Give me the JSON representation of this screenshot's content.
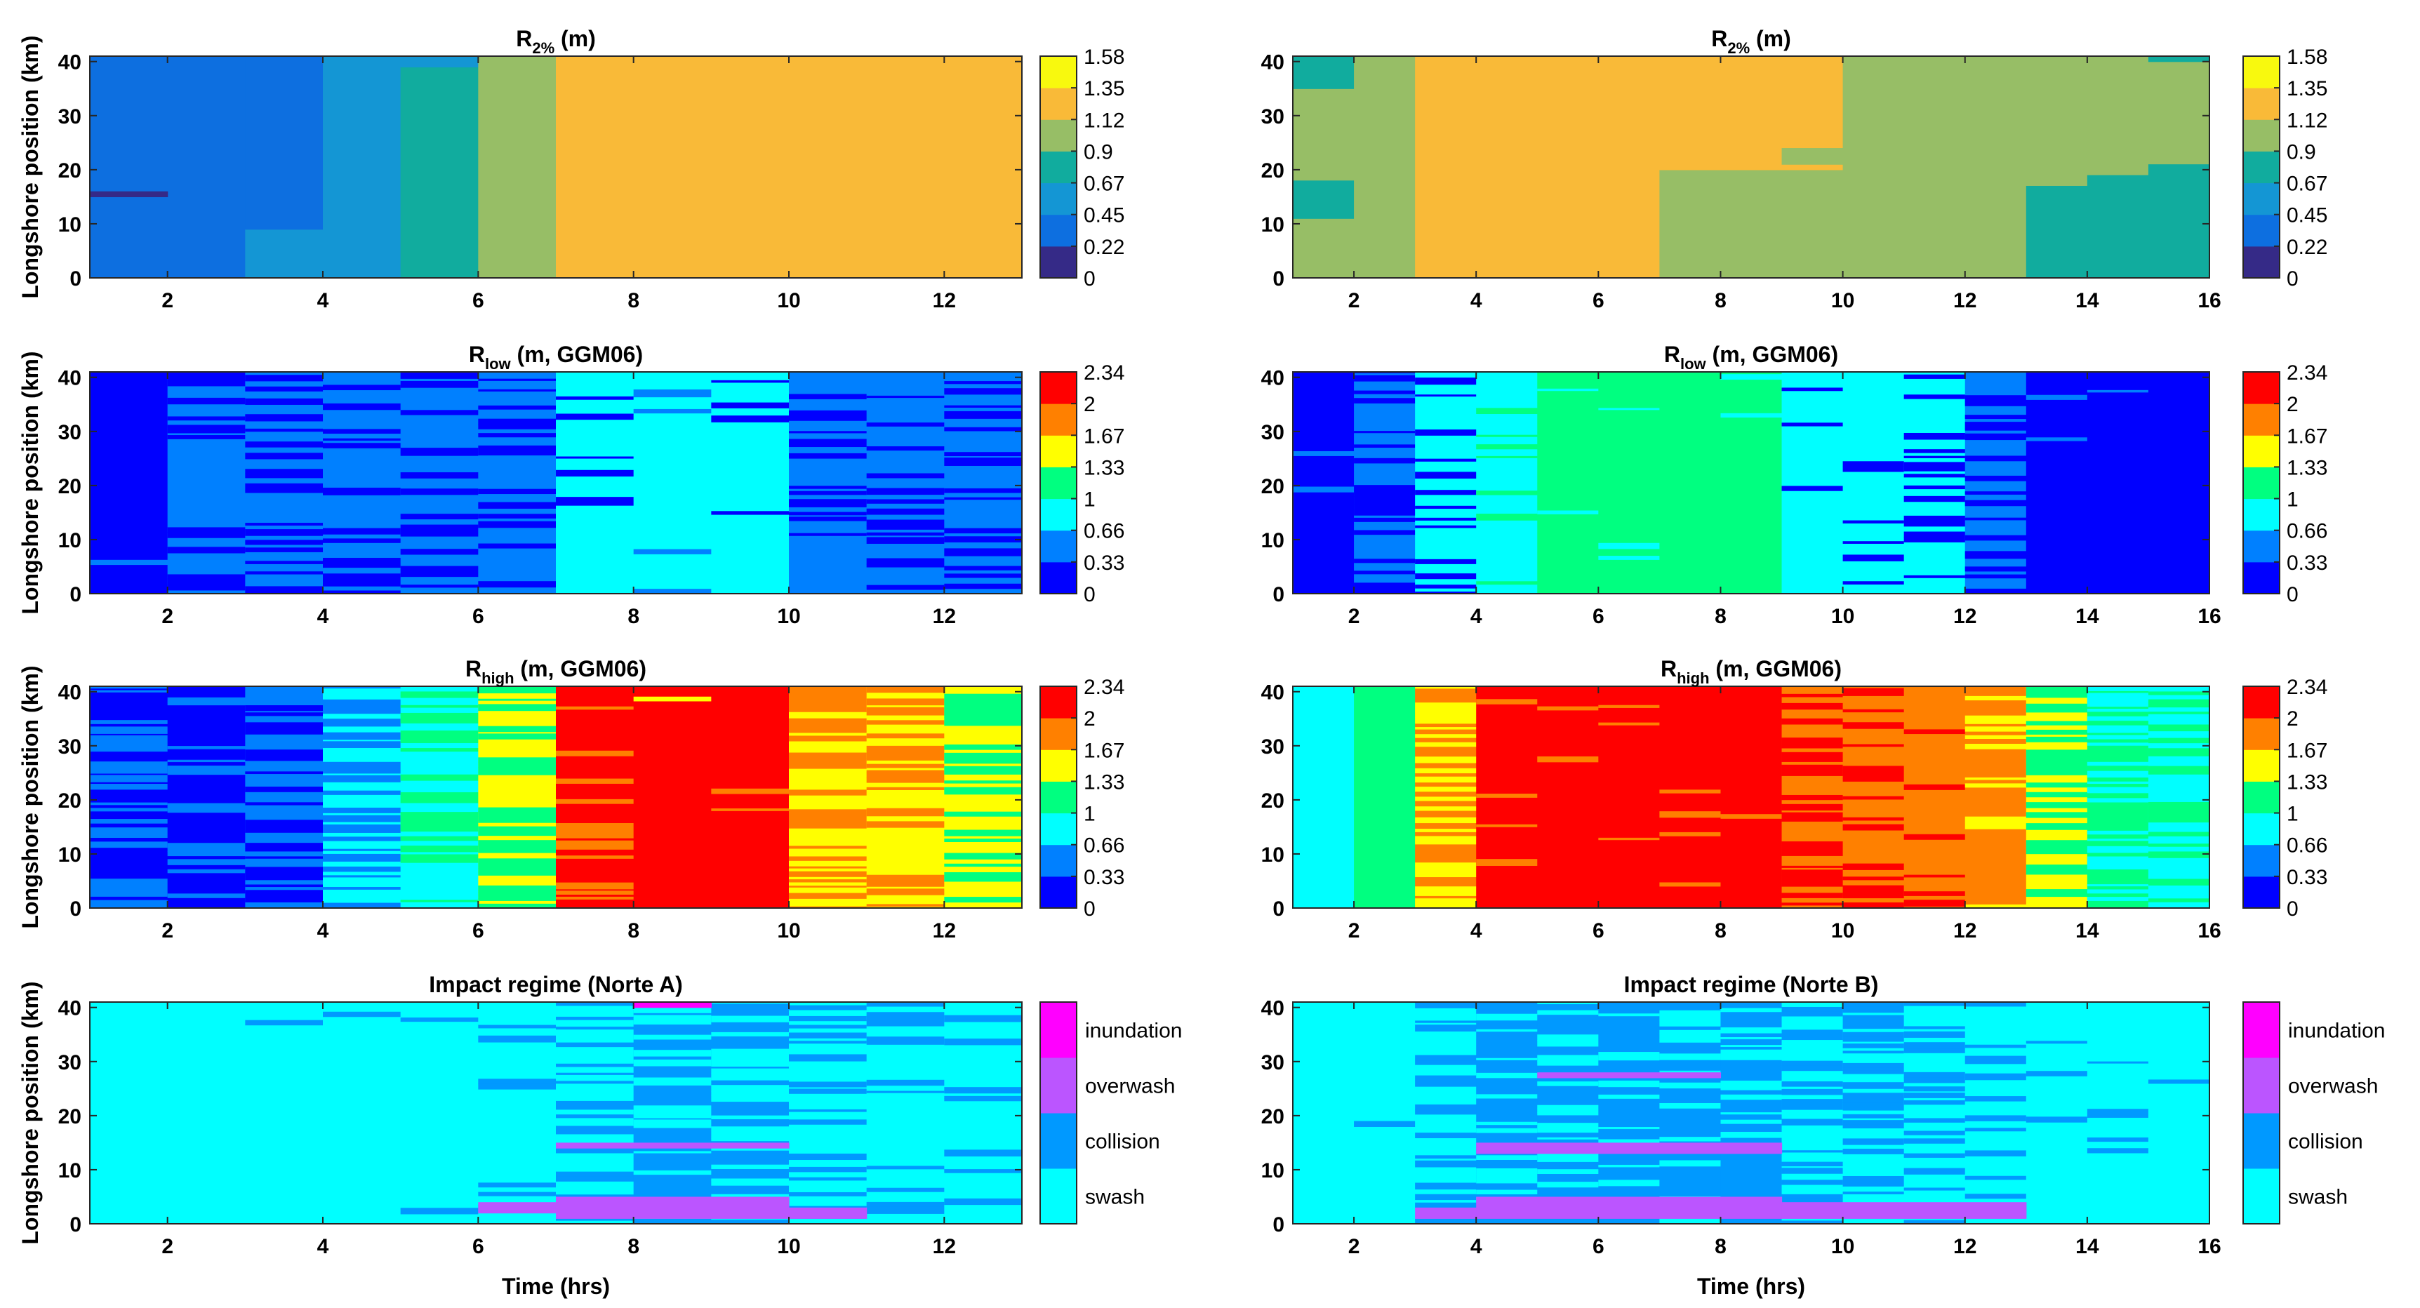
{
  "colors": {
    "parula": [
      "#352a87",
      "#0d6fe0",
      "#1496d4",
      "#11ac9e",
      "#97be66",
      "#f9ba38",
      "#f8f90e"
    ],
    "jet": [
      "#0000ff",
      "#0080ff",
      "#00ffff",
      "#00ff80",
      "#ffff00",
      "#ff8000",
      "#ff0000"
    ],
    "regime": [
      "#00ffff",
      "#0099ff",
      "#bb55ff",
      "#ff00ff"
    ]
  },
  "labels": {
    "ylabel": "Longshore position (km)",
    "xlabel": "Time (hrs)"
  },
  "chart_data": [
    {
      "type": "heatmap",
      "id": "r2_a",
      "colormap": "parula",
      "title_main": "R",
      "title_sub": "2%",
      "title_rest": " (m)",
      "x_ticks": [
        "2",
        "4",
        "6",
        "8",
        "10",
        "12"
      ],
      "y_ticks": [
        "0",
        "10",
        "20",
        "30",
        "40"
      ],
      "xlim": [
        1,
        13
      ],
      "ylim": [
        0,
        41
      ],
      "cbar_ticks": [
        "0",
        "0.22",
        "0.45",
        "0.67",
        "0.9",
        "1.12",
        "1.35",
        "1.58"
      ],
      "blocks": [
        {
          "t0": 1,
          "t1": 3,
          "y0": 0,
          "y1": 41,
          "c": 1
        },
        {
          "t0": 1,
          "t1": 2,
          "y0": 15,
          "y1": 16,
          "c": 0
        },
        {
          "t0": 3,
          "t1": 4,
          "y0": 0,
          "y1": 9,
          "c": 2
        },
        {
          "t0": 3,
          "t1": 4,
          "y0": 9,
          "y1": 41,
          "c": 1
        },
        {
          "t0": 4,
          "t1": 5,
          "y0": 0,
          "y1": 41,
          "c": 2
        },
        {
          "t0": 5,
          "t1": 6,
          "y0": 0,
          "y1": 39,
          "c": 3
        },
        {
          "t0": 5,
          "t1": 6,
          "y0": 39,
          "y1": 41,
          "c": 2
        },
        {
          "t0": 6,
          "t1": 7,
          "y0": 0,
          "y1": 41,
          "c": 4
        },
        {
          "t0": 7,
          "t1": 13,
          "y0": 0,
          "y1": 41,
          "c": 5
        }
      ]
    },
    {
      "type": "heatmap",
      "id": "r2_b",
      "colormap": "parula",
      "title_main": "R",
      "title_sub": "2%",
      "title_rest": " (m)",
      "x_ticks": [
        "2",
        "4",
        "6",
        "8",
        "10",
        "12",
        "14",
        "16"
      ],
      "y_ticks": [
        "0",
        "10",
        "20",
        "30",
        "40"
      ],
      "xlim": [
        1,
        16
      ],
      "ylim": [
        0,
        41
      ],
      "cbar_ticks": [
        "0",
        "0.22",
        "0.45",
        "0.67",
        "0.9",
        "1.12",
        "1.35",
        "1.58"
      ],
      "blocks": [
        {
          "t0": 1,
          "t1": 2,
          "y0": 0,
          "y1": 41,
          "c": 4
        },
        {
          "t0": 1,
          "t1": 2,
          "y0": 35,
          "y1": 41,
          "c": 3
        },
        {
          "t0": 1,
          "t1": 2,
          "y0": 11,
          "y1": 18,
          "c": 3
        },
        {
          "t0": 2,
          "t1": 3,
          "y0": 0,
          "y1": 41,
          "c": 4
        },
        {
          "t0": 3,
          "t1": 7,
          "y0": 0,
          "y1": 41,
          "c": 5
        },
        {
          "t0": 7,
          "t1": 10,
          "y0": 0,
          "y1": 20,
          "c": 4
        },
        {
          "t0": 7,
          "t1": 10,
          "y0": 20,
          "y1": 41,
          "c": 5
        },
        {
          "t0": 9,
          "t1": 10,
          "y0": 21,
          "y1": 24,
          "c": 4
        },
        {
          "t0": 10,
          "t1": 16,
          "y0": 0,
          "y1": 41,
          "c": 4
        },
        {
          "t0": 13,
          "t1": 14,
          "y0": 0,
          "y1": 17,
          "c": 3
        },
        {
          "t0": 14,
          "t1": 15,
          "y0": 0,
          "y1": 19,
          "c": 3
        },
        {
          "t0": 15,
          "t1": 16,
          "y0": 0,
          "y1": 21,
          "c": 3
        },
        {
          "t0": 15,
          "t1": 16,
          "y0": 40,
          "y1": 41,
          "c": 3
        }
      ]
    },
    {
      "type": "heatmap",
      "id": "rlow_a",
      "colormap": "jet",
      "title_main": "R",
      "title_sub": "low",
      "title_rest": " (m, GGM06)",
      "x_ticks": [
        "2",
        "4",
        "6",
        "8",
        "10",
        "12"
      ],
      "y_ticks": [
        "0",
        "10",
        "20",
        "30",
        "40"
      ],
      "xlim": [
        1,
        13
      ],
      "ylim": [
        0,
        41
      ],
      "cbar_ticks": [
        "0",
        "0.33",
        "0.66",
        "1",
        "1.33",
        "1.67",
        "2",
        "2.34"
      ],
      "columns": [
        {
          "base": 0,
          "alt": 1,
          "frac": 0.05
        },
        {
          "base": 1,
          "alt": 0,
          "frac": 0.3
        },
        {
          "base": 1,
          "alt": 0,
          "frac": 0.3
        },
        {
          "base": 1,
          "alt": 0,
          "frac": 0.3
        },
        {
          "base": 1,
          "alt": 0,
          "frac": 0.25
        },
        {
          "base": 1,
          "alt": 0,
          "frac": 0.3
        },
        {
          "base": 2,
          "alt": 0,
          "frac": 0.12
        },
        {
          "base": 2,
          "alt": 1,
          "frac": 0.1
        },
        {
          "base": 2,
          "alt": 0,
          "frac": 0.1
        },
        {
          "base": 1,
          "alt": 0,
          "frac": 0.3
        },
        {
          "base": 1,
          "alt": 0,
          "frac": 0.3
        },
        {
          "base": 1,
          "alt": 0,
          "frac": 0.35
        }
      ]
    },
    {
      "type": "heatmap",
      "id": "rlow_b",
      "colormap": "jet",
      "title_main": "R",
      "title_sub": "low",
      "title_rest": " (m, GGM06)",
      "x_ticks": [
        "2",
        "4",
        "6",
        "8",
        "10",
        "12",
        "14",
        "16"
      ],
      "y_ticks": [
        "0",
        "10",
        "20",
        "30",
        "40"
      ],
      "xlim": [
        1,
        16
      ],
      "ylim": [
        0,
        41
      ],
      "cbar_ticks": [
        "0",
        "0.33",
        "0.66",
        "1",
        "1.33",
        "1.67",
        "2",
        "2.34"
      ],
      "columns": [
        {
          "base": 0,
          "alt": 1,
          "frac": 0.04
        },
        {
          "base": 1,
          "alt": 0,
          "frac": 0.3
        },
        {
          "base": 2,
          "alt": 0,
          "frac": 0.25
        },
        {
          "base": 2,
          "alt": 3,
          "frac": 0.3
        },
        {
          "base": 3,
          "alt": 2,
          "frac": 0.03
        },
        {
          "base": 3,
          "alt": 2,
          "frac": 0.03
        },
        {
          "base": 3,
          "alt": 2,
          "frac": 0.02
        },
        {
          "base": 3,
          "alt": 2,
          "frac": 0.02
        },
        {
          "base": 2,
          "alt": 0,
          "frac": 0.08
        },
        {
          "base": 2,
          "alt": 0,
          "frac": 0.2
        },
        {
          "base": 2,
          "alt": 0,
          "frac": 0.3
        },
        {
          "base": 1,
          "alt": 0,
          "frac": 0.35
        },
        {
          "base": 0,
          "alt": 1,
          "frac": 0.05
        },
        {
          "base": 0,
          "alt": 1,
          "frac": 0.02
        },
        {
          "base": 0,
          "alt": 1,
          "frac": 0.0
        }
      ]
    },
    {
      "type": "heatmap",
      "id": "rhigh_a",
      "colormap": "jet",
      "title_main": "R",
      "title_sub": "high",
      "title_rest": " (m, GGM06)",
      "x_ticks": [
        "2",
        "4",
        "6",
        "8",
        "10",
        "12"
      ],
      "y_ticks": [
        "0",
        "10",
        "20",
        "30",
        "40"
      ],
      "xlim": [
        1,
        13
      ],
      "ylim": [
        0,
        41
      ],
      "cbar_ticks": [
        "0",
        "0.33",
        "0.66",
        "1",
        "1.33",
        "1.67",
        "2",
        "2.34"
      ],
      "columns": [
        {
          "base": 0,
          "alt": 1,
          "frac": 0.35
        },
        {
          "base": 0,
          "alt": 1,
          "frac": 0.3
        },
        {
          "base": 1,
          "alt": 0,
          "frac": 0.35
        },
        {
          "base": 2,
          "alt": 1,
          "frac": 0.45
        },
        {
          "base": 2,
          "alt": 3,
          "frac": 0.3
        },
        {
          "base": 4,
          "alt": 3,
          "frac": 0.45
        },
        {
          "base": 6,
          "alt": 5,
          "frac": 0.25
        },
        {
          "base": 6,
          "alt": 4,
          "frac": 0.04
        },
        {
          "base": 6,
          "alt": 5,
          "frac": 0.04
        },
        {
          "base": 5,
          "alt": 4,
          "frac": 0.5
        },
        {
          "base": 4,
          "alt": 5,
          "frac": 0.45
        },
        {
          "base": 4,
          "alt": 3,
          "frac": 0.45
        }
      ]
    },
    {
      "type": "heatmap",
      "id": "rhigh_b",
      "colormap": "jet",
      "title_main": "R",
      "title_sub": "high",
      "title_rest": " (m, GGM06)",
      "x_ticks": [
        "2",
        "4",
        "6",
        "8",
        "10",
        "12",
        "14",
        "16"
      ],
      "y_ticks": [
        "0",
        "10",
        "20",
        "30",
        "40"
      ],
      "xlim": [
        1,
        16
      ],
      "ylim": [
        0,
        41
      ],
      "cbar_ticks": [
        "0",
        "0.33",
        "0.66",
        "1",
        "1.33",
        "1.67",
        "2",
        "2.34"
      ],
      "columns": [
        {
          "base": 2,
          "alt": 2,
          "frac": 0.0
        },
        {
          "base": 3,
          "alt": 4,
          "frac": 0.03
        },
        {
          "base": 5,
          "alt": 4,
          "frac": 0.5
        },
        {
          "base": 6,
          "alt": 5,
          "frac": 0.03
        },
        {
          "base": 6,
          "alt": 5,
          "frac": 0.03
        },
        {
          "base": 6,
          "alt": 5,
          "frac": 0.03
        },
        {
          "base": 6,
          "alt": 5,
          "frac": 0.03
        },
        {
          "base": 6,
          "alt": 5,
          "frac": 0.05
        },
        {
          "base": 5,
          "alt": 6,
          "frac": 0.4
        },
        {
          "base": 5,
          "alt": 6,
          "frac": 0.3
        },
        {
          "base": 5,
          "alt": 6,
          "frac": 0.1
        },
        {
          "base": 5,
          "alt": 4,
          "frac": 0.2
        },
        {
          "base": 4,
          "alt": 3,
          "frac": 0.5
        },
        {
          "base": 3,
          "alt": 2,
          "frac": 0.5
        },
        {
          "base": 2,
          "alt": 3,
          "frac": 0.4
        }
      ]
    },
    {
      "type": "heatmap",
      "id": "regime_a",
      "colormap": "regime",
      "title_main": "Impact regime (Norte A)",
      "title_sub": "",
      "title_rest": "",
      "x_ticks": [
        "2",
        "4",
        "6",
        "8",
        "10",
        "12"
      ],
      "y_ticks": [
        "0",
        "10",
        "20",
        "30",
        "40"
      ],
      "xlim": [
        1,
        13
      ],
      "ylim": [
        0,
        41
      ],
      "cbar_labels": [
        "swash",
        "collision",
        "overwash",
        "inundation"
      ],
      "columns": [
        {
          "base": 0,
          "alt": 1,
          "frac": 0.0
        },
        {
          "base": 0,
          "alt": 1,
          "frac": 0.0
        },
        {
          "base": 0,
          "alt": 1,
          "frac": 0.01
        },
        {
          "base": 0,
          "alt": 1,
          "frac": 0.02
        },
        {
          "base": 0,
          "alt": 1,
          "frac": 0.05
        },
        {
          "base": 0,
          "alt": 1,
          "frac": 0.08
        },
        {
          "base": 0,
          "alt": 1,
          "frac": 0.45
        },
        {
          "base": 1,
          "alt": 0,
          "frac": 0.35
        },
        {
          "base": 1,
          "alt": 0,
          "frac": 0.35
        },
        {
          "base": 0,
          "alt": 1,
          "frac": 0.45
        },
        {
          "base": 0,
          "alt": 1,
          "frac": 0.3
        },
        {
          "base": 0,
          "alt": 1,
          "frac": 0.25
        }
      ],
      "bands": [
        {
          "t0": 6,
          "t1": 7,
          "y0": 2,
          "y1": 4,
          "c": 2
        },
        {
          "t0": 7,
          "t1": 10,
          "y0": 1,
          "y1": 5,
          "c": 2
        },
        {
          "t0": 10,
          "t1": 11,
          "y0": 1,
          "y1": 3,
          "c": 2
        },
        {
          "t0": 7,
          "t1": 10,
          "y0": 14,
          "y1": 15,
          "c": 2
        },
        {
          "t0": 8,
          "t1": 9,
          "y0": 40,
          "y1": 41,
          "c": 3
        }
      ]
    },
    {
      "type": "heatmap",
      "id": "regime_b",
      "colormap": "regime",
      "title_main": "Impact regime (Norte B)",
      "title_sub": "",
      "title_rest": "",
      "x_ticks": [
        "2",
        "4",
        "6",
        "8",
        "10",
        "12",
        "14",
        "16"
      ],
      "y_ticks": [
        "0",
        "10",
        "20",
        "30",
        "40"
      ],
      "xlim": [
        1,
        16
      ],
      "ylim": [
        0,
        41
      ],
      "cbar_labels": [
        "swash",
        "collision",
        "overwash",
        "inundation"
      ],
      "columns": [
        {
          "base": 0,
          "alt": 1,
          "frac": 0.02
        },
        {
          "base": 0,
          "alt": 1,
          "frac": 0.03
        },
        {
          "base": 0,
          "alt": 1,
          "frac": 0.3
        },
        {
          "base": 1,
          "alt": 0,
          "frac": 0.25
        },
        {
          "base": 1,
          "alt": 0,
          "frac": 0.25
        },
        {
          "base": 1,
          "alt": 0,
          "frac": 0.25
        },
        {
          "base": 1,
          "alt": 0,
          "frac": 0.25
        },
        {
          "base": 1,
          "alt": 0,
          "frac": 0.3
        },
        {
          "base": 0,
          "alt": 1,
          "frac": 0.45
        },
        {
          "base": 0,
          "alt": 1,
          "frac": 0.4
        },
        {
          "base": 0,
          "alt": 1,
          "frac": 0.35
        },
        {
          "base": 0,
          "alt": 1,
          "frac": 0.3
        },
        {
          "base": 0,
          "alt": 1,
          "frac": 0.1
        },
        {
          "base": 0,
          "alt": 1,
          "frac": 0.06
        },
        {
          "base": 0,
          "alt": 1,
          "frac": 0.03
        }
      ],
      "bands": [
        {
          "t0": 3,
          "t1": 4,
          "y0": 1,
          "y1": 3,
          "c": 2
        },
        {
          "t0": 4,
          "t1": 9,
          "y0": 1,
          "y1": 5,
          "c": 2
        },
        {
          "t0": 9,
          "t1": 13,
          "y0": 1,
          "y1": 4,
          "c": 2
        },
        {
          "t0": 4,
          "t1": 9,
          "y0": 13,
          "y1": 15,
          "c": 2
        },
        {
          "t0": 5,
          "t1": 8,
          "y0": 27,
          "y1": 28,
          "c": 2
        }
      ]
    }
  ]
}
